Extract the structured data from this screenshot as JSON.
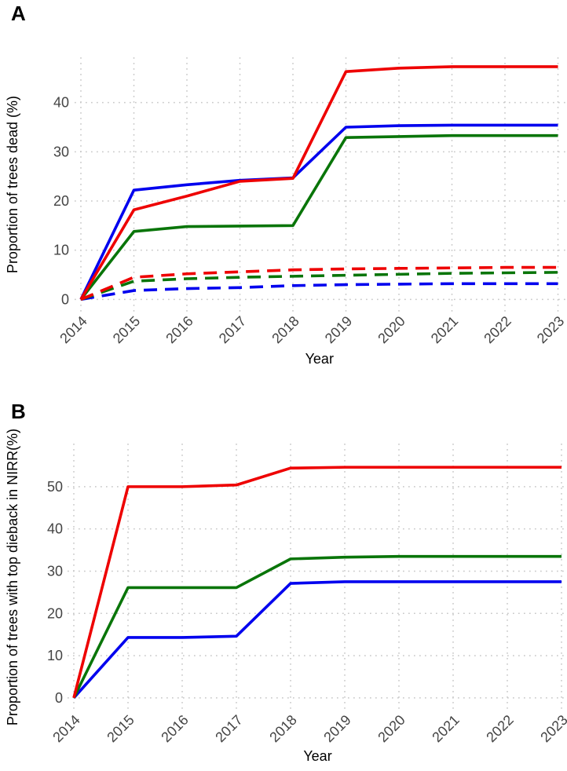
{
  "panels": [
    {
      "label": "A"
    },
    {
      "label": "B"
    }
  ],
  "colors": {
    "red": "#EE0000",
    "blue": "#0000EE",
    "green": "#097509",
    "grid": "#c8c8c8",
    "tick_text": "#444444",
    "axis_text": "#000000"
  },
  "chart_data": [
    {
      "type": "line",
      "panel": "A",
      "title": "",
      "xlabel": "Year",
      "ylabel": "Proportion of trees dead (%)",
      "x": [
        2014,
        2015,
        2016,
        2017,
        2018,
        2019,
        2020,
        2021,
        2022,
        2023
      ],
      "yticks": [
        0,
        10,
        20,
        30,
        40
      ],
      "ylim": [
        -2.5,
        49.2
      ],
      "grid": "dotted",
      "legend_position": "none",
      "series": [
        {
          "name": "green-solid",
          "color": "#097509",
          "style": "solid",
          "values": [
            0,
            13.8,
            14.8,
            14.9,
            15.0,
            32.9,
            33.1,
            33.3,
            33.3,
            33.3
          ]
        },
        {
          "name": "blue-solid",
          "color": "#0000EE",
          "style": "solid",
          "values": [
            0,
            22.2,
            23.3,
            24.2,
            24.7,
            35.0,
            35.3,
            35.4,
            35.4,
            35.4
          ]
        },
        {
          "name": "red-solid",
          "color": "#EE0000",
          "style": "solid",
          "values": [
            0,
            18.2,
            21.0,
            24.0,
            24.6,
            46.3,
            47.0,
            47.3,
            47.3,
            47.3
          ]
        },
        {
          "name": "blue-dashed",
          "color": "#0000EE",
          "style": "dashed",
          "values": [
            0,
            1.8,
            2.2,
            2.4,
            2.8,
            3.0,
            3.1,
            3.2,
            3.2,
            3.2
          ]
        },
        {
          "name": "green-dashed",
          "color": "#097509",
          "style": "dashed",
          "values": [
            0,
            3.7,
            4.2,
            4.5,
            4.7,
            4.9,
            5.1,
            5.3,
            5.4,
            5.5
          ]
        },
        {
          "name": "red-dashed",
          "color": "#EE0000",
          "style": "dashed",
          "values": [
            0,
            4.5,
            5.2,
            5.6,
            6.0,
            6.2,
            6.3,
            6.4,
            6.5,
            6.5
          ]
        }
      ]
    },
    {
      "type": "line",
      "panel": "B",
      "title": "",
      "xlabel": "Year",
      "ylabel": "Proportion of trees with top dieback in NIRR(%)",
      "x": [
        2014,
        2015,
        2016,
        2017,
        2018,
        2019,
        2020,
        2021,
        2022,
        2023
      ],
      "yticks": [
        0,
        10,
        20,
        30,
        40,
        50
      ],
      "ylim": [
        -3.0,
        60.2
      ],
      "grid": "dotted",
      "legend_position": "none",
      "series": [
        {
          "name": "blue-solid",
          "color": "#0000EE",
          "style": "solid",
          "values": [
            0,
            14.3,
            14.3,
            14.6,
            27.1,
            27.5,
            27.5,
            27.5,
            27.5,
            27.5
          ]
        },
        {
          "name": "green-solid",
          "color": "#097509",
          "style": "solid",
          "values": [
            0,
            26.1,
            26.1,
            26.1,
            32.9,
            33.3,
            33.5,
            33.5,
            33.5,
            33.5
          ]
        },
        {
          "name": "red-solid",
          "color": "#EE0000",
          "style": "solid",
          "values": [
            0,
            50.0,
            50.0,
            50.4,
            54.4,
            54.6,
            54.6,
            54.6,
            54.6,
            54.6
          ]
        }
      ]
    }
  ]
}
